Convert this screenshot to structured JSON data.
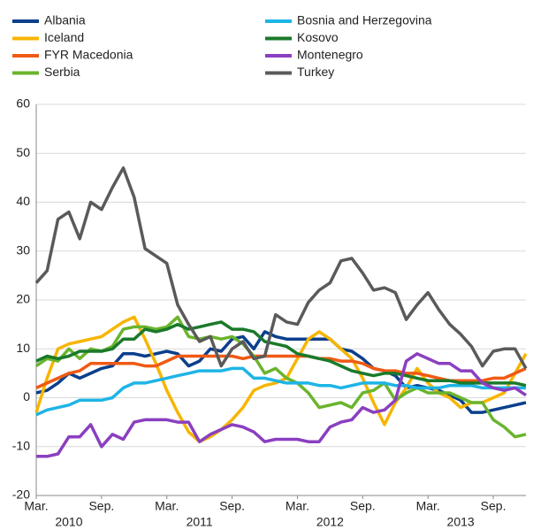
{
  "chart_data": {
    "type": "line",
    "categories": [
      "Mar.",
      null,
      null,
      null,
      null,
      null,
      "Sep.",
      null,
      null,
      null,
      null,
      null,
      "Mar.",
      null,
      null,
      null,
      null,
      null,
      "Sep.",
      null,
      null,
      null,
      null,
      null,
      "Mar.",
      null,
      null,
      null,
      null,
      null,
      "Sep.",
      null,
      null,
      null,
      null,
      null,
      "Mar.",
      null,
      null,
      null,
      null,
      null,
      "Sep.",
      null,
      null,
      null
    ],
    "year_labels": [
      "2010",
      "2011",
      "2012",
      "2013"
    ],
    "ylim": [
      -20,
      60
    ],
    "yticks": [
      -20,
      -10,
      0,
      10,
      20,
      30,
      40,
      50,
      60
    ],
    "grid": true,
    "series": [
      {
        "name": "Albania",
        "color": "#0b3f8c",
        "values": [
          1,
          1.5,
          3,
          5,
          4,
          5,
          6,
          6.5,
          9,
          9,
          8.5,
          9,
          9.5,
          9,
          6.5,
          7.5,
          10,
          9.5,
          12,
          12.5,
          10,
          13.5,
          12.5,
          12,
          12,
          12,
          12,
          12,
          10,
          9.5,
          8,
          6,
          5.5,
          4.5,
          2,
          2.5,
          2,
          1.5,
          0.5,
          -0.5,
          -3,
          -3,
          -2.5,
          -2,
          -1.5,
          -1
        ]
      },
      {
        "name": "Iceland",
        "color": "#f7b500",
        "values": [
          -3,
          4,
          10,
          11,
          11.5,
          12,
          12.5,
          14,
          15.5,
          16.5,
          12,
          7,
          1.5,
          -3,
          -7,
          -9,
          -8,
          -6.5,
          -4.5,
          -2,
          1.5,
          2.5,
          3,
          4,
          8,
          12,
          13.5,
          12,
          10,
          8,
          4,
          -1,
          -5.5,
          -1,
          2,
          6,
          3,
          1,
          0,
          -2,
          -1,
          -1,
          0,
          1,
          5,
          9
        ]
      },
      {
        "name": "FYR Macedonia",
        "color": "#f05a14",
        "values": [
          2,
          3,
          4,
          5,
          5.5,
          7,
          7,
          7,
          7,
          7,
          6.5,
          6.5,
          7.5,
          8.5,
          8.5,
          8.5,
          8.5,
          8.5,
          8.5,
          8,
          8.5,
          8.5,
          8.5,
          8.5,
          8.5,
          8.5,
          8,
          8,
          7.5,
          7.5,
          7,
          6,
          5.5,
          5.5,
          5,
          5,
          4.5,
          4,
          3.5,
          3.5,
          3.5,
          3.5,
          4,
          4,
          5,
          6
        ]
      },
      {
        "name": "Serbia",
        "color": "#6ab42d",
        "values": [
          6.5,
          8,
          7.5,
          10,
          8,
          10,
          9.5,
          10.5,
          14,
          14.5,
          14.5,
          14,
          14.5,
          16.5,
          12.5,
          12,
          12.5,
          12,
          12.5,
          11,
          8.5,
          5,
          6,
          4,
          3,
          1,
          -2,
          -1.5,
          -1,
          -2,
          1,
          1.5,
          3,
          -0.5,
          1,
          2,
          1,
          1,
          1,
          0,
          -1,
          -1,
          -4.5,
          -6,
          -8,
          -7.5
        ]
      },
      {
        "name": "Bosnia and Herzegovina",
        "color": "#1eb4e6",
        "values": [
          -3.5,
          -2.5,
          -2,
          -1.5,
          -0.5,
          -0.5,
          -0.5,
          0,
          2,
          3,
          3,
          3.5,
          4,
          4.5,
          5,
          5.5,
          5.5,
          5.5,
          6,
          6,
          4,
          4,
          3.5,
          3,
          3,
          3,
          2.5,
          2.5,
          2,
          2.5,
          3,
          3,
          3,
          2.5,
          2.5,
          2,
          2,
          2,
          2.5,
          2.5,
          2.5,
          2,
          2,
          2,
          2,
          2
        ]
      },
      {
        "name": "Kosovo",
        "color": "#1a7a2a",
        "values": [
          7.5,
          8.5,
          8,
          8.5,
          9.5,
          9.5,
          9.5,
          10,
          12,
          12,
          14,
          13.5,
          14,
          15,
          14,
          14.5,
          15,
          15.5,
          14,
          14,
          13.5,
          11.5,
          11,
          10.5,
          9,
          8.5,
          8,
          7.5,
          6.5,
          5.5,
          5,
          4.5,
          5,
          5,
          4.5,
          4,
          3.5,
          3.5,
          3.5,
          3,
          3,
          3,
          3,
          3,
          3,
          2.5
        ]
      },
      {
        "name": "Montenegro",
        "color": "#8a3fc0",
        "values": [
          -12,
          -12,
          -11.5,
          -8,
          -8,
          -5.5,
          -10,
          -7.5,
          -8.5,
          -5,
          -4.5,
          -4.5,
          -4.5,
          -5,
          -5,
          -9,
          -7.5,
          -6.5,
          -5.5,
          -6,
          -7,
          -9,
          -8.5,
          -8.5,
          -8.5,
          -9,
          -9,
          -6,
          -5,
          -4.5,
          -2,
          -3,
          -2.5,
          -0.5,
          7.5,
          9,
          8,
          7,
          7,
          5.5,
          5.5,
          3,
          2,
          1.5,
          2,
          0.5
        ]
      },
      {
        "name": "Turkey",
        "color": "#5a5a5a",
        "values": [
          23.5,
          26,
          36.5,
          38,
          32.5,
          40,
          38.5,
          43,
          47,
          41,
          30.5,
          29,
          27.5,
          19,
          15,
          11.5,
          12.5,
          6.5,
          10,
          11.5,
          8,
          8.5,
          17,
          15.5,
          15,
          19.5,
          22,
          23.5,
          28,
          28.5,
          25.5,
          22,
          22.5,
          21.5,
          16,
          19,
          21.5,
          18,
          15,
          13,
          10.5,
          6.5,
          9.5,
          10,
          10,
          6
        ]
      }
    ]
  }
}
